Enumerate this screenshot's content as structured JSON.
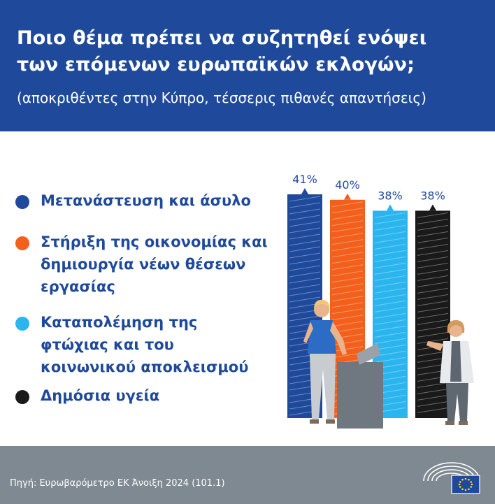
{
  "header": {
    "title_lines": [
      "Ποιο θέμα πρέπει να συζητηθεί ενόψει",
      "των επόμενων ευρωπαϊκών εκλογών;"
    ],
    "subtitle": "(αποκριθέντες στην Κύπρο, τέσσερις πιθανές απαντήσεις)"
  },
  "legend": [
    {
      "lines": [
        "Μετανάστευση και άσυλο"
      ],
      "color": "#1f4a9b"
    },
    {
      "lines": [
        "Στήριξη της οικονομίας και",
        "δημιουργία νέων θέσεων",
        "εργασίας"
      ],
      "color": "#f2601c"
    },
    {
      "lines": [
        "Καταπολέμηση της",
        "φτώχιας και του",
        "κοινωνικού αποκλεισμού"
      ],
      "color": "#2bb5ee"
    },
    {
      "lines": [
        "Δημόσια υγεία"
      ],
      "color": "#1a1a1a"
    }
  ],
  "chart_data": {
    "type": "bar",
    "categories": [
      "Μετανάστευση και άσυλο",
      "Στήριξη της οικονομίας και δημιουργία νέων θέσεων εργασίας",
      "Καταπολέμηση της φτώχιας και του κοινωνικού αποκλεισμού",
      "Δημόσια υγεία"
    ],
    "values": [
      41,
      40,
      38,
      38
    ],
    "value_labels": [
      "41%",
      "40%",
      "38%",
      "38%"
    ],
    "colors": [
      "#1f4a9b",
      "#f2601c",
      "#2bb5ee",
      "#1a1a1a"
    ],
    "ylim": [
      0,
      45
    ],
    "unit": "%"
  },
  "footer": {
    "source": "Πηγή: Ευρωβαρόμετρο ΕΚ Άνοιξη 2024 (101.1)"
  },
  "colors": {
    "header_bg": "#1f4a9b",
    "footer_bg": "#7f8992",
    "text_blue": "#1f4a9b"
  },
  "icons": [
    "european-parliament-logo",
    "eu-flag-icon"
  ]
}
